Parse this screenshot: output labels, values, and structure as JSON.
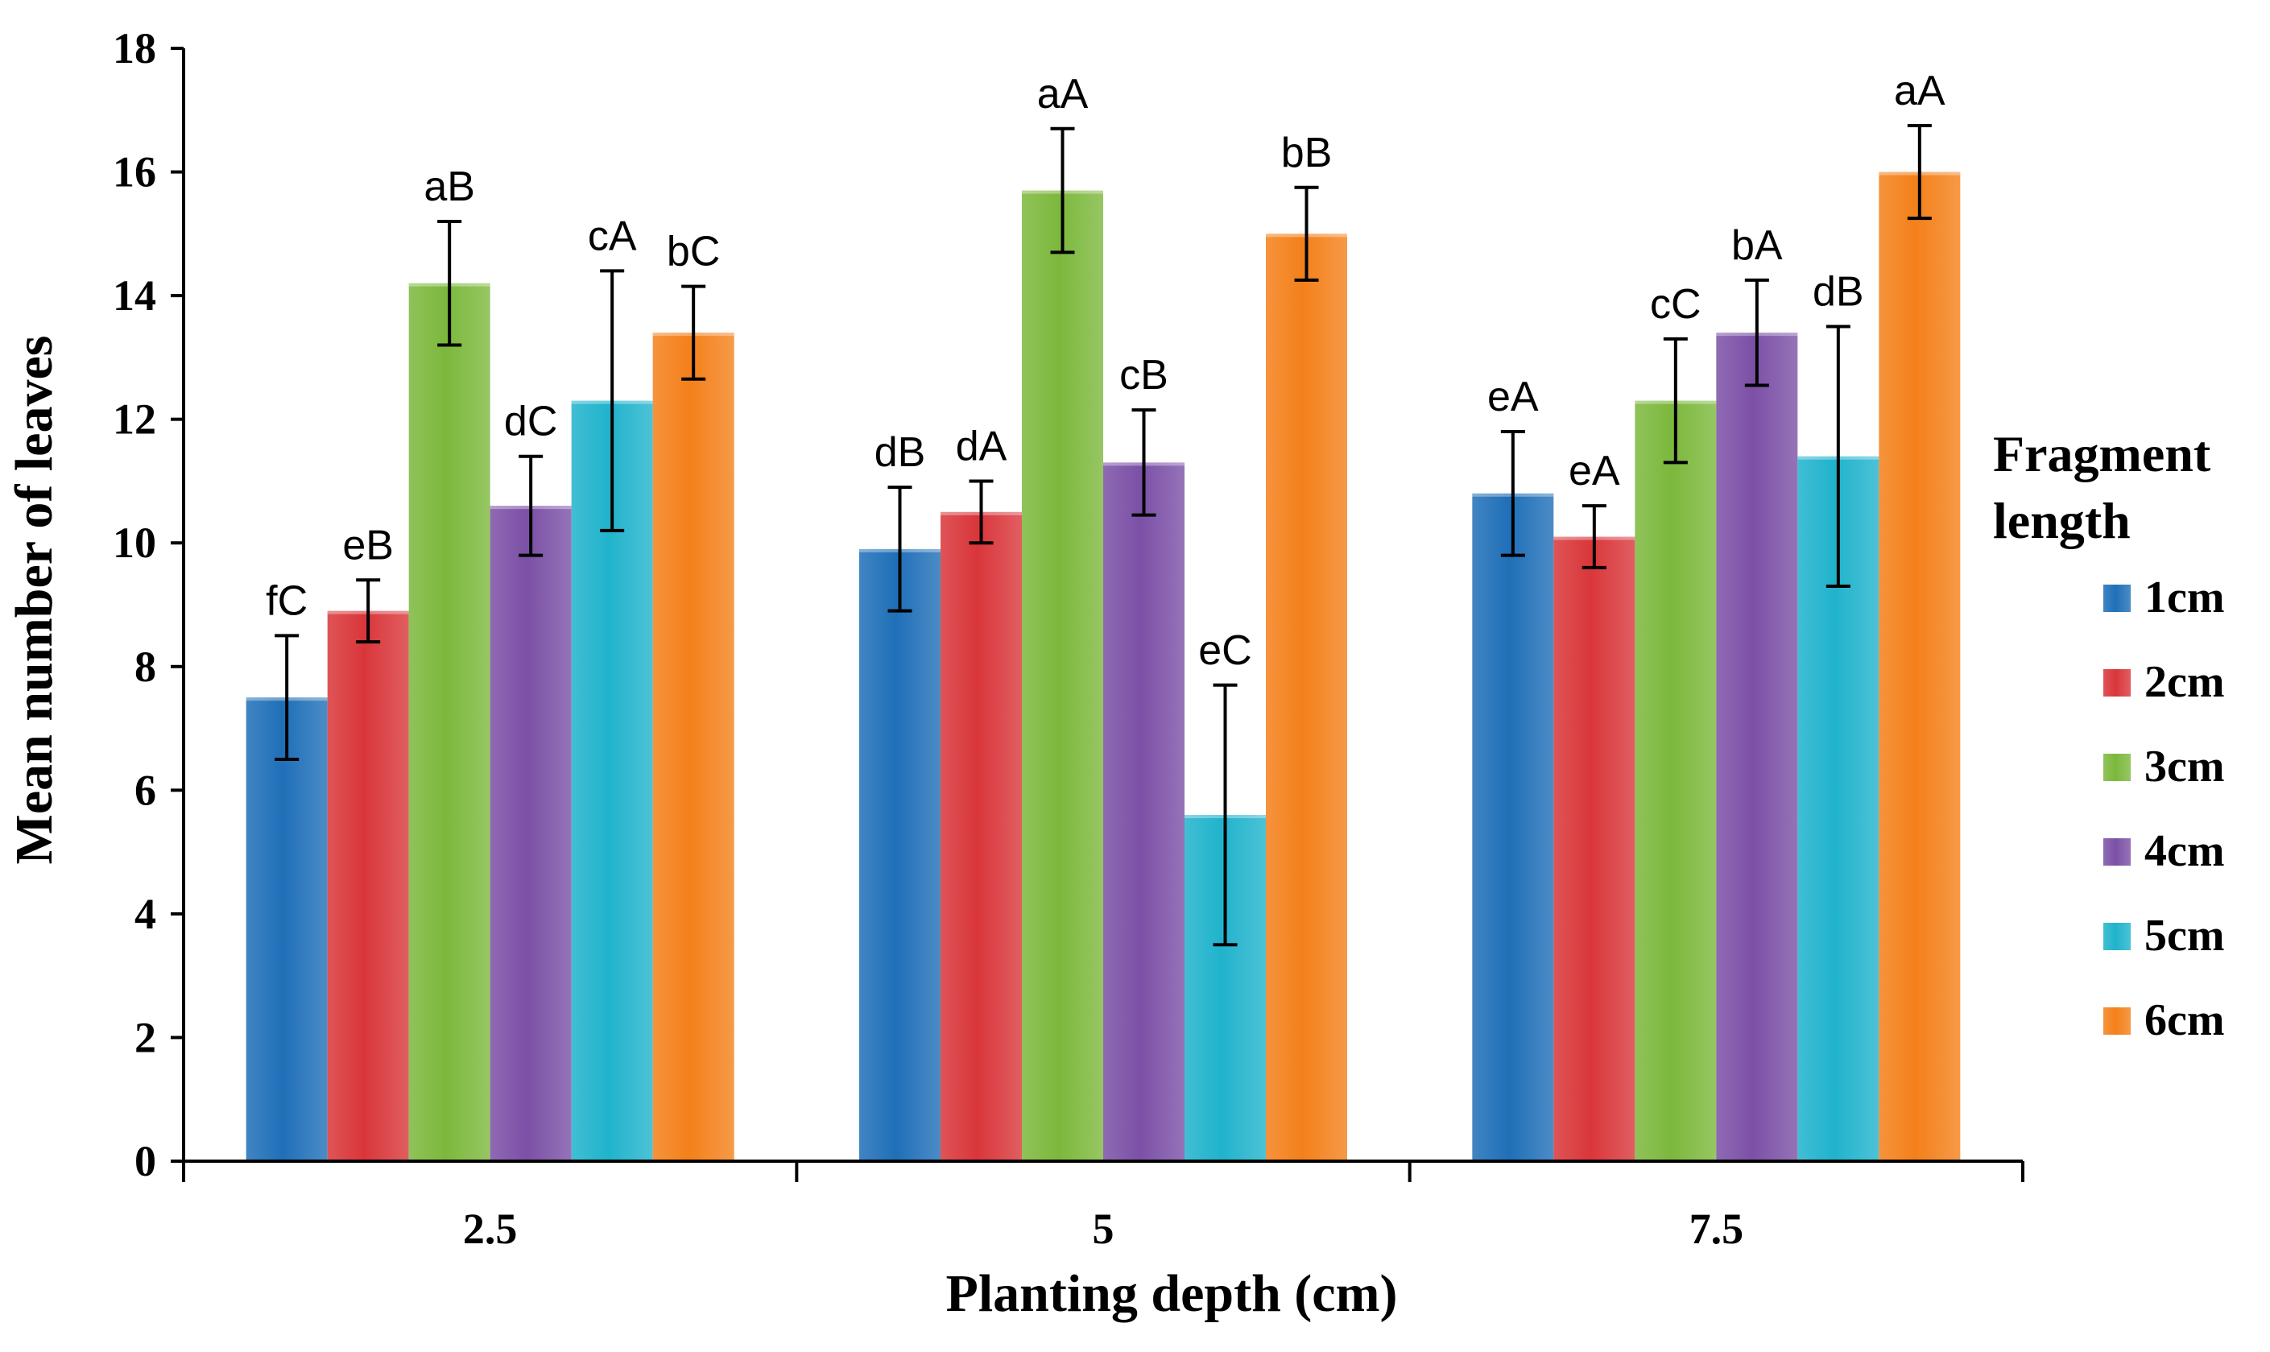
{
  "chart_data": {
    "type": "bar",
    "title": "",
    "xlabel": "Planting  depth (cm)",
    "ylabel": "Mean number of leaves",
    "ylim": [
      0,
      18
    ],
    "yticks": [
      0,
      2,
      4,
      6,
      8,
      10,
      12,
      14,
      16,
      18
    ],
    "categories": [
      "2.5",
      "5",
      "7.5"
    ],
    "legend_title": [
      "Fragment",
      "length"
    ],
    "legend_position": "right",
    "series": [
      {
        "name": "1cm",
        "color": "#1f6fb8",
        "values": [
          7.5,
          9.9,
          10.8
        ],
        "errors": [
          1.0,
          1.0,
          1.0
        ],
        "labels": [
          "fC",
          "dB",
          "eA"
        ]
      },
      {
        "name": "2cm",
        "color": "#d9363a",
        "values": [
          8.9,
          10.5,
          10.1
        ],
        "errors": [
          0.5,
          0.5,
          0.5
        ],
        "labels": [
          "eB",
          "dA",
          "eA"
        ]
      },
      {
        "name": "3cm",
        "color": "#7cb83c",
        "values": [
          14.2,
          15.7,
          12.3
        ],
        "errors": [
          1.0,
          1.0,
          1.0
        ],
        "labels": [
          "aB",
          "aA",
          "cC"
        ]
      },
      {
        "name": "4cm",
        "color": "#7b50a6",
        "values": [
          10.6,
          11.3,
          13.4
        ],
        "errors": [
          0.8,
          0.85,
          0.85
        ],
        "labels": [
          "dC",
          "cB",
          "bA"
        ]
      },
      {
        "name": "5cm",
        "color": "#20b3cc",
        "values": [
          12.3,
          5.6,
          11.4
        ],
        "errors": [
          2.1,
          2.1,
          2.1
        ],
        "labels": [
          "cA",
          "eC",
          "dB"
        ]
      },
      {
        "name": "6cm",
        "color": "#f4801a",
        "values": [
          13.4,
          15.0,
          16.0
        ],
        "errors": [
          0.75,
          0.75,
          0.75
        ],
        "labels": [
          "bC",
          "bB",
          "aA"
        ]
      }
    ]
  }
}
